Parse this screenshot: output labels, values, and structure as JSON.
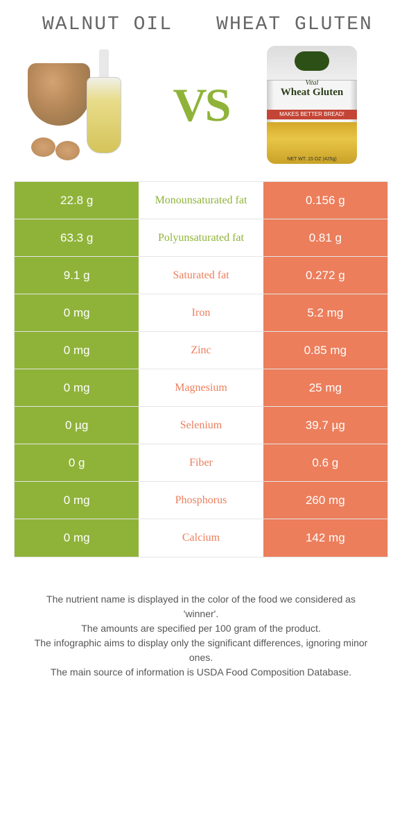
{
  "colors": {
    "green": "#8fb339",
    "orange": "#ec7e5c",
    "text_gray": "#666666"
  },
  "header": {
    "left_title": "Walnut oil",
    "right_title": "Wheat gluten",
    "vs_label": "VS"
  },
  "product_right": {
    "brand_small": "Vital",
    "brand_main": "Wheat Gluten",
    "strip_text": "MAKES BETTER BREAD!",
    "weight_text": "NET WT. 15 OZ (425g)"
  },
  "rows": [
    {
      "left": "22.8 g",
      "label": "Monounsaturated fat",
      "right": "0.156 g",
      "winner": "left"
    },
    {
      "left": "63.3 g",
      "label": "Polyunsaturated fat",
      "right": "0.81 g",
      "winner": "left"
    },
    {
      "left": "9.1 g",
      "label": "Saturated fat",
      "right": "0.272 g",
      "winner": "right"
    },
    {
      "left": "0 mg",
      "label": "Iron",
      "right": "5.2 mg",
      "winner": "right"
    },
    {
      "left": "0 mg",
      "label": "Zinc",
      "right": "0.85 mg",
      "winner": "right"
    },
    {
      "left": "0 mg",
      "label": "Magnesium",
      "right": "25 mg",
      "winner": "right"
    },
    {
      "left": "0 µg",
      "label": "Selenium",
      "right": "39.7 µg",
      "winner": "right"
    },
    {
      "left": "0 g",
      "label": "Fiber",
      "right": "0.6 g",
      "winner": "right"
    },
    {
      "left": "0 mg",
      "label": "Phosphorus",
      "right": "260 mg",
      "winner": "right"
    },
    {
      "left": "0 mg",
      "label": "Calcium",
      "right": "142 mg",
      "winner": "right"
    }
  ],
  "footnotes": [
    "The nutrient name is displayed in the color of the food we considered as 'winner'.",
    "The amounts are specified per 100 gram of the product.",
    "The infographic aims to display only the significant differences, ignoring minor ones.",
    "The main source of information is USDA Food Composition Database."
  ]
}
